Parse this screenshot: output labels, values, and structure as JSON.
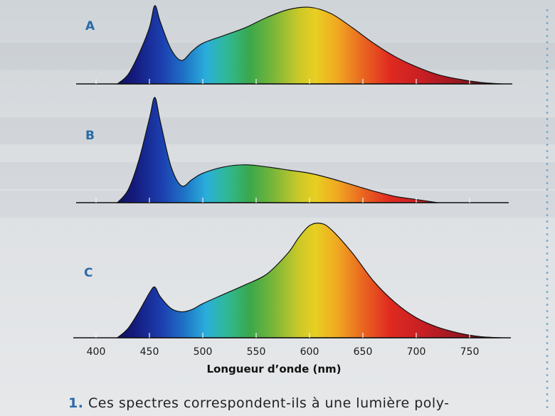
{
  "chart_data": {
    "type": "area",
    "xlabel": "Longueur d’onde (nm)",
    "xlim": [
      380,
      790
    ],
    "x_ticks": [
      400,
      450,
      500,
      550,
      600,
      650,
      700,
      750
    ],
    "fill": "visible-spectrum-gradient",
    "panels": [
      {
        "label": "A",
        "x": [
          420,
          430,
          440,
          450,
          455,
          460,
          470,
          480,
          490,
          500,
          520,
          540,
          560,
          580,
          600,
          620,
          640,
          660,
          680,
          700,
          720,
          740,
          760,
          780
        ],
        "y": [
          0,
          12,
          38,
          72,
          100,
          80,
          45,
          30,
          42,
          52,
          62,
          72,
          85,
          95,
          98,
          90,
          72,
          52,
          35,
          22,
          12,
          6,
          2,
          0
        ]
      },
      {
        "label": "B",
        "x": [
          420,
          430,
          440,
          450,
          455,
          460,
          470,
          480,
          490,
          500,
          520,
          540,
          560,
          580,
          600,
          620,
          640,
          660,
          680,
          700,
          720
        ],
        "y": [
          0,
          12,
          40,
          80,
          100,
          78,
          35,
          16,
          22,
          28,
          34,
          36,
          34,
          31,
          28,
          23,
          17,
          11,
          6,
          3,
          0
        ]
      },
      {
        "label": "C",
        "x": [
          420,
          430,
          440,
          450,
          455,
          460,
          470,
          480,
          490,
          500,
          520,
          540,
          560,
          580,
          590,
          600,
          610,
          620,
          640,
          660,
          680,
          700,
          720,
          740,
          760,
          780
        ],
        "y": [
          0,
          8,
          22,
          38,
          43,
          35,
          25,
          22,
          24,
          29,
          37,
          45,
          54,
          72,
          85,
          95,
          97,
          92,
          72,
          48,
          30,
          17,
          9,
          4,
          1,
          0
        ]
      }
    ]
  },
  "question": {
    "number": "1.",
    "text": "Ces spectres correspondent-ils à une lumière poly-"
  }
}
